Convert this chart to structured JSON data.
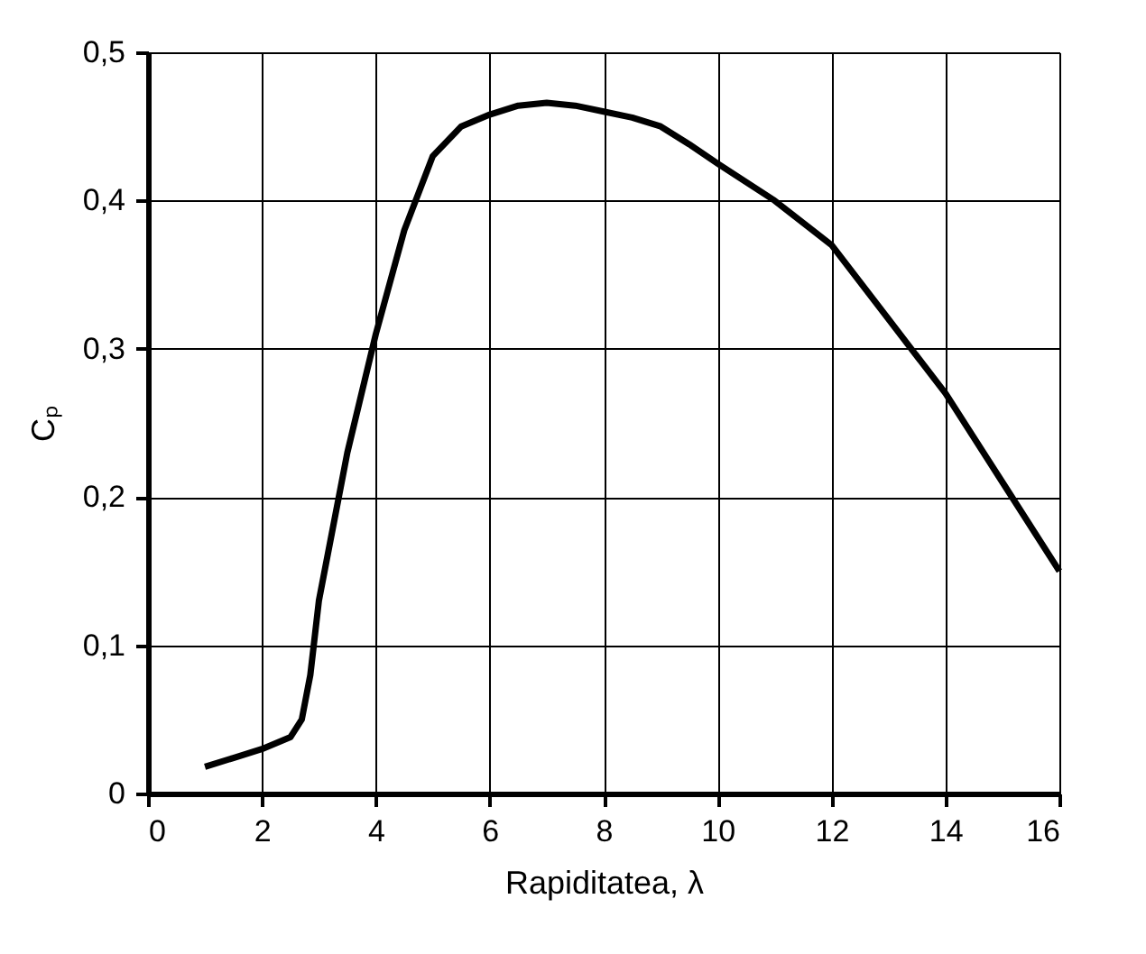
{
  "chart_data": {
    "type": "line",
    "xlabel": "Rapiditatea, λ",
    "ylabel": "Cₚ",
    "x": [
      1,
      1.5,
      2,
      2.5,
      2.7,
      2.85,
      3,
      3.5,
      4,
      4.5,
      5,
      5.5,
      6,
      6.5,
      7,
      7.5,
      8,
      8.5,
      9,
      9.5,
      10,
      11,
      12,
      13,
      14,
      15,
      16
    ],
    "series": [
      {
        "color": "#000000",
        "values": [
          0.018,
          0.024,
          0.03,
          0.038,
          0.05,
          0.08,
          0.13,
          0.23,
          0.31,
          0.38,
          0.43,
          0.45,
          0.458,
          0.464,
          0.466,
          0.464,
          0.46,
          0.456,
          0.45,
          0.438,
          0.425,
          0.4,
          0.37,
          0.32,
          0.27,
          0.21,
          0.15
        ]
      }
    ],
    "xlim": [
      0,
      16
    ],
    "xticks": [
      0,
      2,
      4,
      6,
      8,
      10,
      12,
      14,
      16
    ],
    "ylim": [
      0,
      0.5
    ],
    "yticks": [
      0,
      {
        "value": 0.1,
        "label": "0,1"
      },
      {
        "value": 0.2,
        "label": "0,2"
      },
      {
        "value": 0.3,
        "label": "0,3"
      },
      {
        "value": 0.4,
        "label": "0,4"
      },
      {
        "value": 0.5,
        "label": "0,5"
      }
    ],
    "grid": true,
    "marker": "none",
    "line_style": "solid"
  }
}
